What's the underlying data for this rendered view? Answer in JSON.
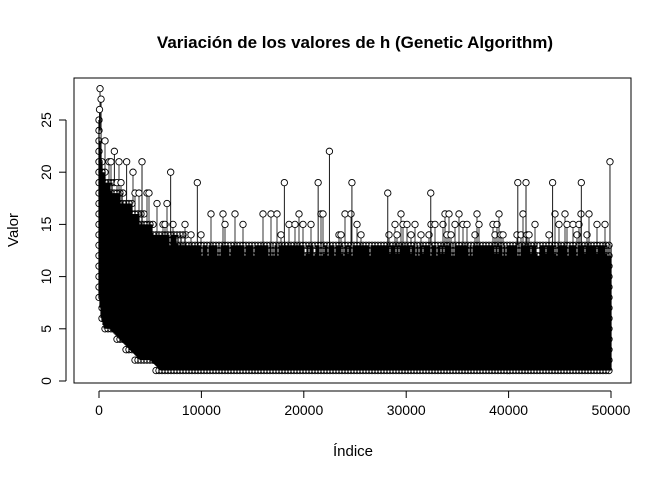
{
  "chart_data": {
    "type": "scatter",
    "title": "Variación de los valores de h (Genetic Algorithm)",
    "xlabel": "Índice",
    "ylabel": "Valor",
    "xlim": [
      0,
      50000
    ],
    "ylim": [
      1,
      28
    ],
    "x_ticks": [
      0,
      10000,
      20000,
      30000,
      40000,
      50000
    ],
    "y_ticks": [
      0,
      5,
      10,
      15,
      20,
      25
    ],
    "plot_style": "b",
    "marker": "open-circle",
    "color": "#000000",
    "n_points": 50000,
    "envelope": {
      "description_points_x": [
        0,
        200,
        500,
        1000,
        2000,
        3000,
        4000,
        5000,
        6000,
        7000,
        10000,
        20000,
        30000,
        40000,
        50000
      ],
      "upper_typical": [
        25,
        22,
        20,
        19,
        18,
        17,
        16,
        15,
        14,
        14,
        13,
        13,
        13,
        13,
        13
      ],
      "lower_bound": [
        8,
        6,
        5,
        5,
        4,
        3,
        2,
        2,
        1,
        1,
        1,
        1,
        1,
        1,
        1
      ]
    },
    "notable_points": [
      {
        "x": 100,
        "y": 28
      },
      {
        "x": 200,
        "y": 27
      },
      {
        "x": 50,
        "y": 26
      },
      {
        "x": 1500,
        "y": 22
      },
      {
        "x": 2700,
        "y": 21
      },
      {
        "x": 4200,
        "y": 21
      },
      {
        "x": 7000,
        "y": 20
      },
      {
        "x": 9600,
        "y": 19
      },
      {
        "x": 18100,
        "y": 19
      },
      {
        "x": 21400,
        "y": 19
      },
      {
        "x": 22500,
        "y": 22
      },
      {
        "x": 24700,
        "y": 19
      },
      {
        "x": 28200,
        "y": 18
      },
      {
        "x": 32400,
        "y": 18
      },
      {
        "x": 40900,
        "y": 19
      },
      {
        "x": 41700,
        "y": 19
      },
      {
        "x": 44300,
        "y": 19
      },
      {
        "x": 47100,
        "y": 19
      },
      {
        "x": 49900,
        "y": 21
      }
    ]
  }
}
